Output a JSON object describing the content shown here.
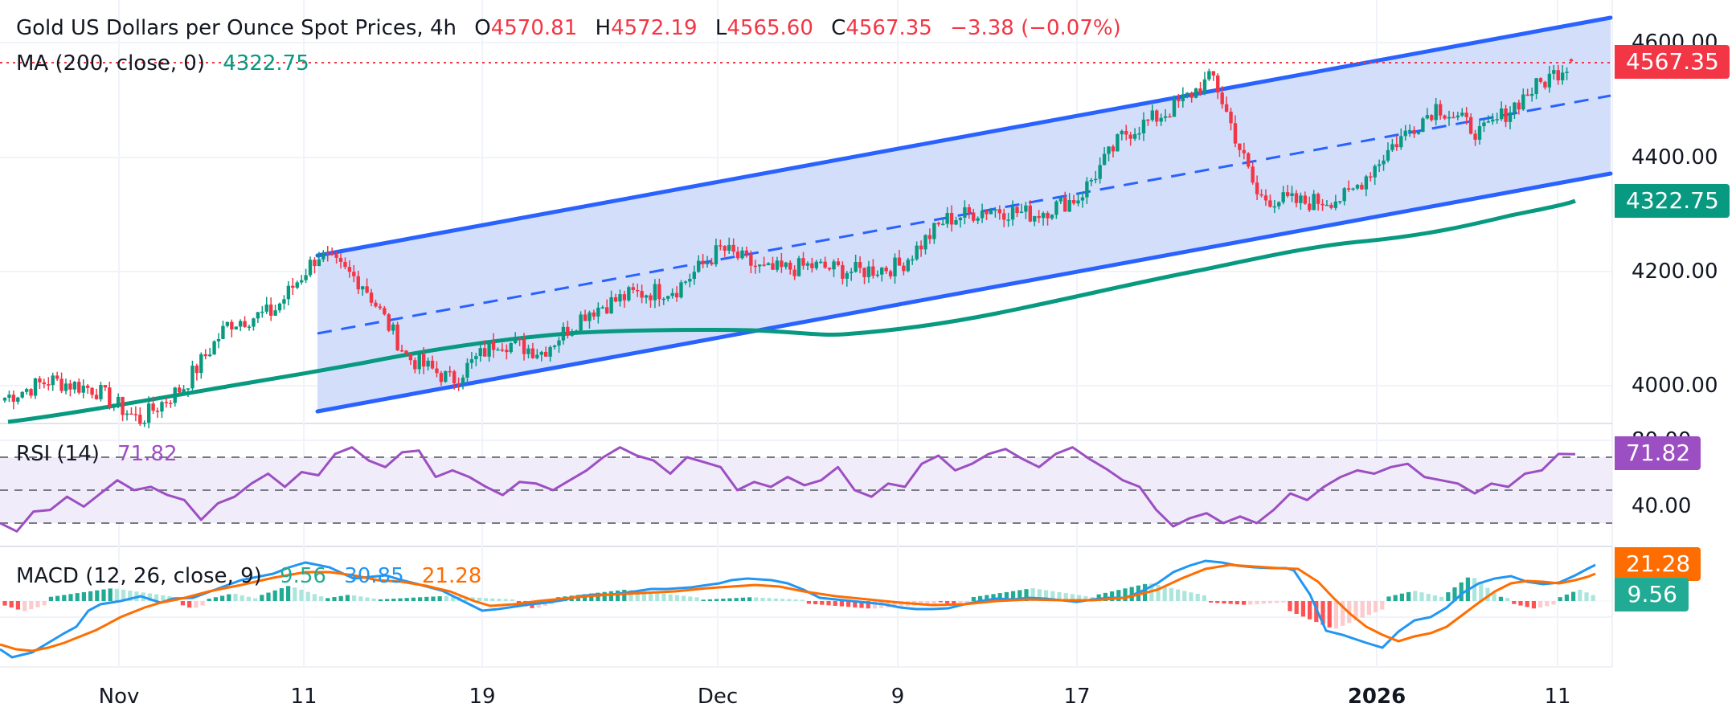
{
  "header": {
    "title": "Gold US Dollars per Ounce Spot Prices, 4h",
    "open_label": "O",
    "open": "4570.81",
    "high_label": "H",
    "high": "4572.19",
    "low_label": "L",
    "low": "4565.60",
    "close_label": "C",
    "close": "4567.35",
    "change": "−3.38 (−0.07%)"
  },
  "ma": {
    "label": "MA (200, close, 0)",
    "value": "4322.75"
  },
  "rsi": {
    "label": "RSI (14)",
    "value": "71.82",
    "axis_label": "40.00",
    "axis_top_partial": "80.00"
  },
  "macd": {
    "label": "MACD (12, 26, close, 9)",
    "histogram": "9.56",
    "macd": "30.85",
    "signal": "21.28"
  },
  "price_axis": [
    "4600.00",
    "4400.00",
    "4200.00",
    "4000.00"
  ],
  "price_tags": {
    "last": "4567.35",
    "ma": "4322.75",
    "rsi": "71.82",
    "signal": "21.28",
    "hist": "9.56"
  },
  "time_axis": [
    {
      "label": "Nov",
      "bold": false
    },
    {
      "label": "11",
      "bold": false
    },
    {
      "label": "19",
      "bold": false
    },
    {
      "label": "Dec",
      "bold": false
    },
    {
      "label": "9",
      "bold": false
    },
    {
      "label": "17",
      "bold": false
    },
    {
      "label": "2026",
      "bold": true
    },
    {
      "label": "11",
      "bold": false
    }
  ],
  "colors": {
    "up": "#089981",
    "down": "#f23645",
    "ma": "#089981",
    "channel": "#2962ff",
    "channel_fill": "#d1dcfb",
    "rsi": "#9c4fc2",
    "macd": "#2196f3",
    "signal": "#ff6d00"
  },
  "chart_data": [
    {
      "type": "candlestick",
      "title": "Gold US Dollars per Ounce Spot Prices, 4h",
      "xlabel": "",
      "ylabel": "",
      "x_ticks": [
        "Nov",
        "11",
        "19",
        "Dec",
        "9",
        "17",
        "2026",
        "11"
      ],
      "y_ticks": [
        4000,
        4200,
        4400,
        4600
      ],
      "ylim": [
        3940,
        4640
      ],
      "last": {
        "open": 4570.81,
        "high": 4572.19,
        "low": 4565.6,
        "close": 4567.35,
        "change": -3.38,
        "change_pct": -0.07
      },
      "approx_close_path": [
        {
          "x": "Oct 28",
          "close": 3980
        },
        {
          "x": "Oct 30",
          "close": 4010
        },
        {
          "x": "Nov 1",
          "close": 3995
        },
        {
          "x": "Nov 4",
          "close": 3940
        },
        {
          "x": "Nov 7",
          "close": 4000
        },
        {
          "x": "Nov 10",
          "close": 4110
        },
        {
          "x": "Nov 12",
          "close": 4130
        },
        {
          "x": "Nov 13",
          "close": 4230
        },
        {
          "x": "Nov 14",
          "close": 4180
        },
        {
          "x": "Nov 17",
          "close": 4050
        },
        {
          "x": "Nov 18",
          "close": 4010
        },
        {
          "x": "Nov 19",
          "close": 4080
        },
        {
          "x": "Nov 21",
          "close": 4060
        },
        {
          "x": "Nov 24",
          "close": 4130
        },
        {
          "x": "Nov 26",
          "close": 4160
        },
        {
          "x": "Nov 28",
          "close": 4170
        },
        {
          "x": "Dec 1",
          "close": 4240
        },
        {
          "x": "Dec 3",
          "close": 4200
        },
        {
          "x": "Dec 5",
          "close": 4210
        },
        {
          "x": "Dec 8",
          "close": 4200
        },
        {
          "x": "Dec 10",
          "close": 4210
        },
        {
          "x": "Dec 12",
          "close": 4290
        },
        {
          "x": "Dec 15",
          "close": 4310
        },
        {
          "x": "Dec 16",
          "close": 4300
        },
        {
          "x": "Dec 18",
          "close": 4330
        },
        {
          "x": "Dec 22",
          "close": 4440
        },
        {
          "x": "Dec 24",
          "close": 4480
        },
        {
          "x": "Dec 26",
          "close": 4540
        },
        {
          "x": "Dec 29",
          "close": 4330
        },
        {
          "x": "Dec 31",
          "close": 4320
        },
        {
          "x": "Jan 2",
          "close": 4330
        },
        {
          "x": "Jan 5",
          "close": 4420
        },
        {
          "x": "Jan 7",
          "close": 4490
        },
        {
          "x": "Jan 8",
          "close": 4440
        },
        {
          "x": "Jan 9",
          "close": 4510
        },
        {
          "x": "Jan 12",
          "close": 4567.35
        }
      ],
      "overlays": {
        "ma200": {
          "label": "MA (200, close, 0)",
          "last": 4322.75
        },
        "ascending_channel": {
          "start": "Nov 11",
          "upper_start": 4230,
          "upper_end": 4650,
          "lower_start": 3950,
          "lower_end": 4370
        }
      }
    },
    {
      "type": "line",
      "title": "RSI (14)",
      "last": 71.82,
      "bands": [
        30,
        50,
        70
      ],
      "y_ticks": [
        40,
        80
      ],
      "approx_values": [
        30,
        25,
        37,
        38,
        46,
        40,
        48,
        56,
        50,
        52,
        47,
        44,
        32,
        42,
        46,
        54,
        60,
        52,
        61,
        59,
        72,
        76,
        68,
        64,
        73,
        74,
        58,
        62,
        58,
        52,
        47,
        55,
        54,
        50,
        56,
        62,
        70,
        76,
        71,
        68,
        60,
        70,
        67,
        64,
        50,
        55,
        52,
        58,
        53,
        56,
        64,
        50,
        46,
        54,
        52,
        66,
        71,
        62,
        66,
        72,
        75,
        69,
        64,
        72,
        76,
        69,
        63,
        56,
        52,
        38,
        28,
        33,
        36,
        30,
        34,
        30,
        38,
        48,
        44,
        52,
        58,
        62,
        60,
        64,
        66,
        58,
        56,
        54,
        48,
        54,
        52,
        60,
        62,
        72,
        71.82
      ]
    },
    {
      "type": "line",
      "title": "MACD (12, 26, close, 9)",
      "series": [
        {
          "name": "Histogram",
          "last": 9.56
        },
        {
          "name": "MACD",
          "last": 30.85
        },
        {
          "name": "Signal",
          "last": 21.28
        }
      ]
    }
  ]
}
